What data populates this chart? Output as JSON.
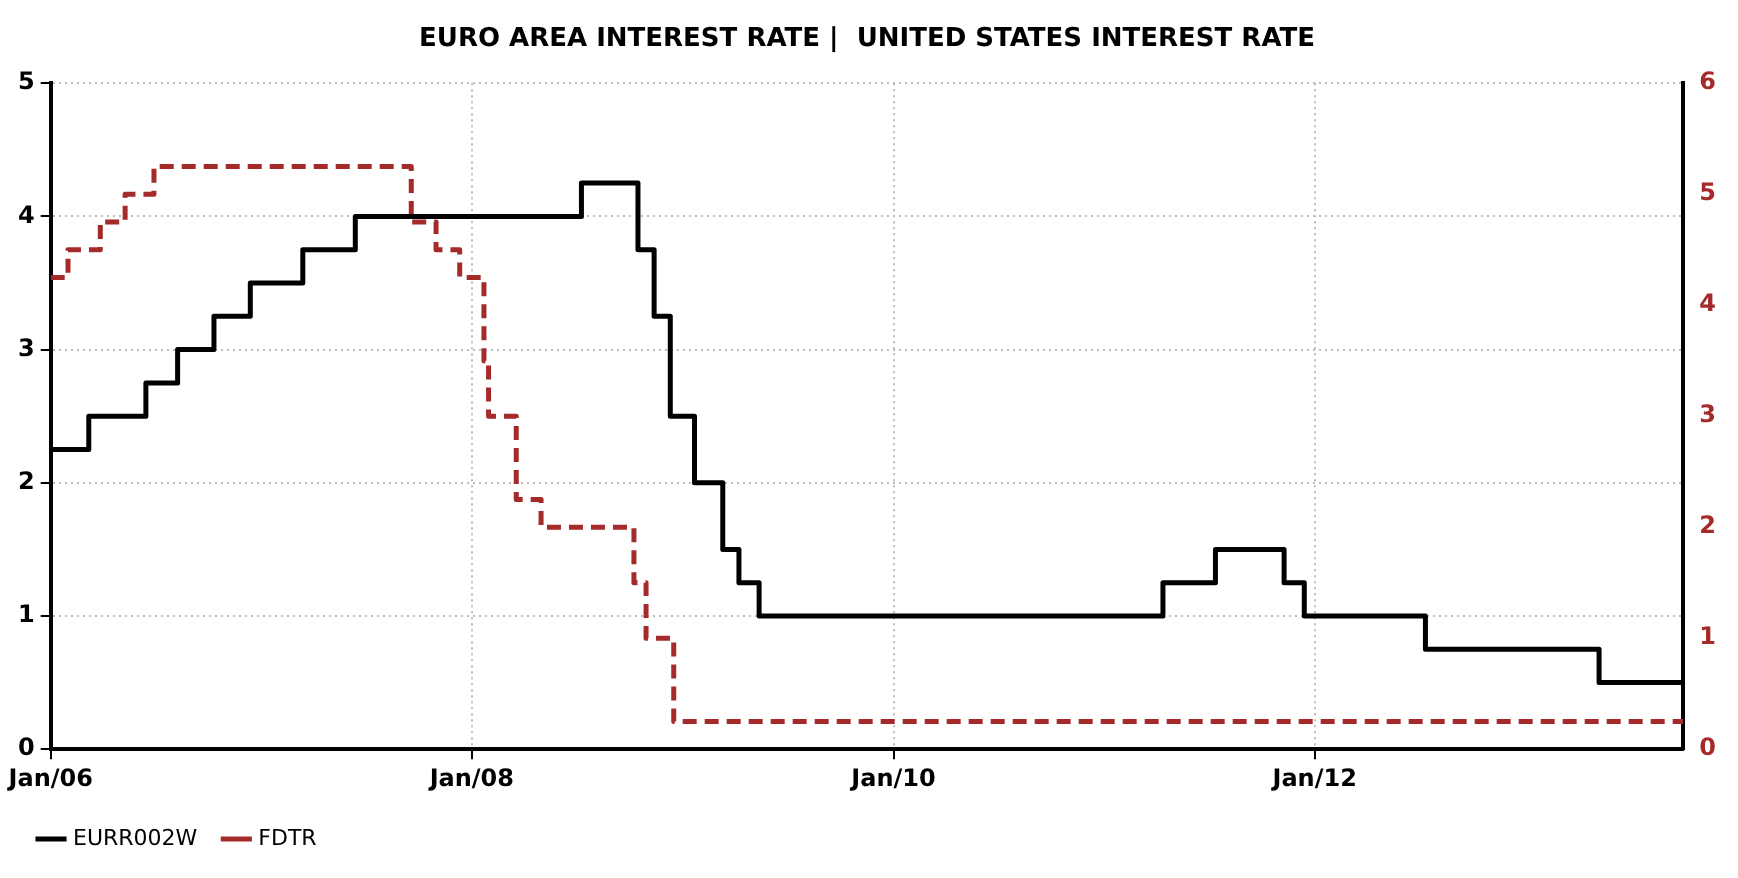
{
  "chart_data": {
    "type": "step",
    "title": "EURO AREA INTEREST RATE |  UNITED STATES INTEREST RATE",
    "xlim": [
      "2006-01-01",
      "2013-10-01"
    ],
    "xticks": [
      {
        "value": "2006-01",
        "label": "Jan/06"
      },
      {
        "value": "2008-01",
        "label": "Jan/08"
      },
      {
        "value": "2010-01",
        "label": "Jan/10"
      },
      {
        "value": "2012-01",
        "label": "Jan/12"
      }
    ],
    "ylim": [
      0,
      5
    ],
    "yticks": [
      0,
      1,
      2,
      3,
      4,
      5
    ],
    "y2lim": [
      0,
      6
    ],
    "y2ticks": [
      0,
      1,
      2,
      3,
      4,
      5,
      6
    ],
    "grid": true,
    "legend": "bottom left",
    "marker": "none",
    "series": [
      {
        "name": "EURR002W",
        "color": "#000000",
        "line_style": "solid",
        "x": [
          "2006-01-01",
          "2006-03-08",
          "2006-06-15",
          "2006-08-09",
          "2006-10-11",
          "2006-12-13",
          "2007-03-14",
          "2007-06-13",
          "2008-07-09",
          "2008-10-15",
          "2008-11-12",
          "2008-12-10",
          "2009-01-21",
          "2009-03-11",
          "2009-04-08",
          "2009-05-13",
          "2011-04-13",
          "2011-07-13",
          "2011-11-09",
          "2011-12-14",
          "2012-07-11",
          "2013-05-08",
          "2013-10-01"
        ],
        "values": [
          2.25,
          2.5,
          2.75,
          3.0,
          3.25,
          3.5,
          3.75,
          4.0,
          4.25,
          3.75,
          3.25,
          2.5,
          2.0,
          1.5,
          1.25,
          1.0,
          1.25,
          1.5,
          1.25,
          1.0,
          0.75,
          0.5,
          0.5
        ]
      },
      {
        "name": "FDTR",
        "color": "#a52a2a",
        "line_style": "dashed",
        "axis": "y2",
        "x": [
          "2006-01-01",
          "2006-01-31",
          "2006-03-28",
          "2006-05-10",
          "2006-06-29",
          "2007-09-18",
          "2007-10-31",
          "2007-12-11",
          "2008-01-22",
          "2008-01-30",
          "2008-03-18",
          "2008-04-30",
          "2008-10-08",
          "2008-10-29",
          "2008-12-16",
          "2013-10-01"
        ],
        "values": [
          4.25,
          4.5,
          4.75,
          5.0,
          5.25,
          4.75,
          4.5,
          4.25,
          3.5,
          3.0,
          2.25,
          2.0,
          1.5,
          1.0,
          0.25,
          0.25
        ]
      }
    ]
  }
}
